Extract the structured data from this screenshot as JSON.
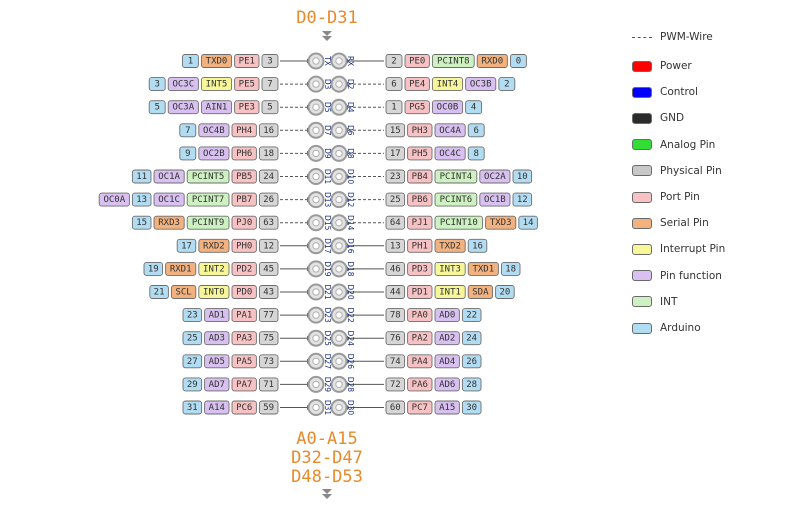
{
  "top_heading": "D0-D31",
  "bottom_headings": [
    "A0-A15",
    "D32-D47",
    "D48-D53"
  ],
  "legend": [
    {
      "label": "PWM-Wire",
      "style": "dash"
    },
    {
      "label": "Power",
      "color": "#ff0000"
    },
    {
      "label": "Control",
      "color": "#0000ff"
    },
    {
      "label": "GND",
      "color": "#2b2b2b"
    },
    {
      "label": "Analog Pin",
      "color": "#33dd33"
    },
    {
      "label": "Physical Pin",
      "color": "#c8c8c8"
    },
    {
      "label": "Port Pin",
      "color": "#f6c2c4"
    },
    {
      "label": "Serial Pin",
      "color": "#f2b27f"
    },
    {
      "label": "Interrupt Pin",
      "color": "#f7f79a"
    },
    {
      "label": "Pin function",
      "color": "#d8c0f0"
    },
    {
      "label": "INT",
      "color": "#cdf1c0"
    },
    {
      "label": "Arduino",
      "color": "#b2dcf2"
    }
  ],
  "colors": {
    "arduino": "#b2dcf2",
    "physical": "#d6d6d6",
    "port": "#f6c2c4",
    "serial": "#f2b27f",
    "interrupt": "#f7f79a",
    "function": "#d8c0f0",
    "int": "#cdf1c0",
    "heading": "#e88a2b",
    "pin_label": "#1a2f80"
  },
  "rows": [
    {
      "pin_l": "TX",
      "pin_r": "RX",
      "pwm_l": false,
      "pwm_r": false,
      "left": [
        [
          "arduino",
          "1"
        ],
        [
          "serial",
          "TXD0"
        ],
        [
          "port",
          "PE1"
        ],
        [
          "physical",
          "3"
        ]
      ],
      "right": [
        [
          "physical",
          "2"
        ],
        [
          "port",
          "PE0"
        ],
        [
          "int",
          "PCINT8"
        ],
        [
          "serial",
          "RXD0"
        ],
        [
          "arduino",
          "0"
        ]
      ]
    },
    {
      "pin_l": "D3",
      "pin_r": "D2",
      "pwm_l": true,
      "pwm_r": true,
      "left": [
        [
          "arduino",
          "3"
        ],
        [
          "function",
          "OC3C"
        ],
        [
          "interrupt",
          "INT5"
        ],
        [
          "port",
          "PE5"
        ],
        [
          "physical",
          "7"
        ]
      ],
      "right": [
        [
          "physical",
          "6"
        ],
        [
          "port",
          "PE4"
        ],
        [
          "interrupt",
          "INT4"
        ],
        [
          "function",
          "OC3B"
        ],
        [
          "arduino",
          "2"
        ]
      ]
    },
    {
      "pin_l": "D5",
      "pin_r": "D4",
      "pwm_l": true,
      "pwm_r": true,
      "left": [
        [
          "arduino",
          "5"
        ],
        [
          "function",
          "OC3A"
        ],
        [
          "function",
          "AIN1"
        ],
        [
          "port",
          "PE3"
        ],
        [
          "physical",
          "5"
        ]
      ],
      "right": [
        [
          "physical",
          "1"
        ],
        [
          "port",
          "PG5"
        ],
        [
          "function",
          "OC0B"
        ],
        [
          "arduino",
          "4"
        ]
      ]
    },
    {
      "pin_l": "D7",
      "pin_r": "D6",
      "pwm_l": true,
      "pwm_r": true,
      "left": [
        [
          "arduino",
          "7"
        ],
        [
          "function",
          "OC4B"
        ],
        [
          "port",
          "PH4"
        ],
        [
          "physical",
          "16"
        ]
      ],
      "right": [
        [
          "physical",
          "15"
        ],
        [
          "port",
          "PH3"
        ],
        [
          "function",
          "OC4A"
        ],
        [
          "arduino",
          "6"
        ]
      ]
    },
    {
      "pin_l": "D9",
      "pin_r": "D8",
      "pwm_l": true,
      "pwm_r": true,
      "left": [
        [
          "arduino",
          "9"
        ],
        [
          "function",
          "OC2B"
        ],
        [
          "port",
          "PH6"
        ],
        [
          "physical",
          "18"
        ]
      ],
      "right": [
        [
          "physical",
          "17"
        ],
        [
          "port",
          "PH5"
        ],
        [
          "function",
          "OC4C"
        ],
        [
          "arduino",
          "8"
        ]
      ]
    },
    {
      "pin_l": "D11",
      "pin_r": "D10",
      "pwm_l": true,
      "pwm_r": true,
      "left": [
        [
          "arduino",
          "11"
        ],
        [
          "function",
          "OC1A"
        ],
        [
          "int",
          "PCINT5"
        ],
        [
          "port",
          "PB5"
        ],
        [
          "physical",
          "24"
        ]
      ],
      "right": [
        [
          "physical",
          "23"
        ],
        [
          "port",
          "PB4"
        ],
        [
          "int",
          "PCINT4"
        ],
        [
          "function",
          "OC2A"
        ],
        [
          "arduino",
          "10"
        ]
      ]
    },
    {
      "pin_l": "D13",
      "pin_r": "D12",
      "pwm_l": true,
      "pwm_r": true,
      "left": [
        [
          "function",
          "OC0A"
        ],
        [
          "arduino",
          "13"
        ],
        [
          "function",
          "OC1C"
        ],
        [
          "int",
          "PCINT7"
        ],
        [
          "port",
          "PB7"
        ],
        [
          "physical",
          "26"
        ]
      ],
      "right": [
        [
          "physical",
          "25"
        ],
        [
          "port",
          "PB6"
        ],
        [
          "int",
          "PCINT6"
        ],
        [
          "function",
          "OC1B"
        ],
        [
          "arduino",
          "12"
        ]
      ]
    },
    {
      "pin_l": "D15",
      "pin_r": "D14",
      "pwm_l": true,
      "pwm_r": true,
      "left": [
        [
          "arduino",
          "15"
        ],
        [
          "serial",
          "RXD3"
        ],
        [
          "int",
          "PCINT9"
        ],
        [
          "port",
          "PJ0"
        ],
        [
          "physical",
          "63"
        ]
      ],
      "right": [
        [
          "physical",
          "64"
        ],
        [
          "port",
          "PJ1"
        ],
        [
          "int",
          "PCINT10"
        ],
        [
          "serial",
          "TXD3"
        ],
        [
          "arduino",
          "14"
        ]
      ]
    },
    {
      "pin_l": "D17",
      "pin_r": "D16",
      "pwm_l": false,
      "pwm_r": false,
      "left": [
        [
          "arduino",
          "17"
        ],
        [
          "serial",
          "RXD2"
        ],
        [
          "port",
          "PH0"
        ],
        [
          "physical",
          "12"
        ]
      ],
      "right": [
        [
          "physical",
          "13"
        ],
        [
          "port",
          "PH1"
        ],
        [
          "serial",
          "TXD2"
        ],
        [
          "arduino",
          "16"
        ]
      ]
    },
    {
      "pin_l": "D19",
      "pin_r": "D18",
      "pwm_l": false,
      "pwm_r": false,
      "left": [
        [
          "arduino",
          "19"
        ],
        [
          "serial",
          "RXD1"
        ],
        [
          "interrupt",
          "INT2"
        ],
        [
          "port",
          "PD2"
        ],
        [
          "physical",
          "45"
        ]
      ],
      "right": [
        [
          "physical",
          "46"
        ],
        [
          "port",
          "PD3"
        ],
        [
          "interrupt",
          "INT3"
        ],
        [
          "serial",
          "TXD1"
        ],
        [
          "arduino",
          "18"
        ]
      ]
    },
    {
      "pin_l": "D21",
      "pin_r": "D20",
      "pwm_l": false,
      "pwm_r": false,
      "left": [
        [
          "arduino",
          "21"
        ],
        [
          "serial",
          "SCL"
        ],
        [
          "interrupt",
          "INT0"
        ],
        [
          "port",
          "PD0"
        ],
        [
          "physical",
          "43"
        ]
      ],
      "right": [
        [
          "physical",
          "44"
        ],
        [
          "port",
          "PD1"
        ],
        [
          "interrupt",
          "INT1"
        ],
        [
          "serial",
          "SDA"
        ],
        [
          "arduino",
          "20"
        ]
      ]
    },
    {
      "pin_l": "D23",
      "pin_r": "D22",
      "pwm_l": false,
      "pwm_r": false,
      "left": [
        [
          "arduino",
          "23"
        ],
        [
          "function",
          "AD1"
        ],
        [
          "port",
          "PA1"
        ],
        [
          "physical",
          "77"
        ]
      ],
      "right": [
        [
          "physical",
          "78"
        ],
        [
          "port",
          "PA0"
        ],
        [
          "function",
          "AD0"
        ],
        [
          "arduino",
          "22"
        ]
      ]
    },
    {
      "pin_l": "D25",
      "pin_r": "D24",
      "pwm_l": false,
      "pwm_r": false,
      "left": [
        [
          "arduino",
          "25"
        ],
        [
          "function",
          "AD3"
        ],
        [
          "port",
          "PA3"
        ],
        [
          "physical",
          "75"
        ]
      ],
      "right": [
        [
          "physical",
          "76"
        ],
        [
          "port",
          "PA2"
        ],
        [
          "function",
          "AD2"
        ],
        [
          "arduino",
          "24"
        ]
      ]
    },
    {
      "pin_l": "D27",
      "pin_r": "D26",
      "pwm_l": false,
      "pwm_r": false,
      "left": [
        [
          "arduino",
          "27"
        ],
        [
          "function",
          "AD5"
        ],
        [
          "port",
          "PA5"
        ],
        [
          "physical",
          "73"
        ]
      ],
      "right": [
        [
          "physical",
          "74"
        ],
        [
          "port",
          "PA4"
        ],
        [
          "function",
          "AD4"
        ],
        [
          "arduino",
          "26"
        ]
      ]
    },
    {
      "pin_l": "D29",
      "pin_r": "D28",
      "pwm_l": false,
      "pwm_r": false,
      "left": [
        [
          "arduino",
          "29"
        ],
        [
          "function",
          "AD7"
        ],
        [
          "port",
          "PA7"
        ],
        [
          "physical",
          "71"
        ]
      ],
      "right": [
        [
          "physical",
          "72"
        ],
        [
          "port",
          "PA6"
        ],
        [
          "function",
          "AD6"
        ],
        [
          "arduino",
          "28"
        ]
      ]
    },
    {
      "pin_l": "D31",
      "pin_r": "D30",
      "pwm_l": false,
      "pwm_r": false,
      "left": [
        [
          "arduino",
          "31"
        ],
        [
          "function",
          "A14"
        ],
        [
          "port",
          "PC6"
        ],
        [
          "physical",
          "59"
        ]
      ],
      "right": [
        [
          "physical",
          "60"
        ],
        [
          "port",
          "PC7"
        ],
        [
          "function",
          "A15"
        ],
        [
          "arduino",
          "30"
        ]
      ]
    }
  ]
}
